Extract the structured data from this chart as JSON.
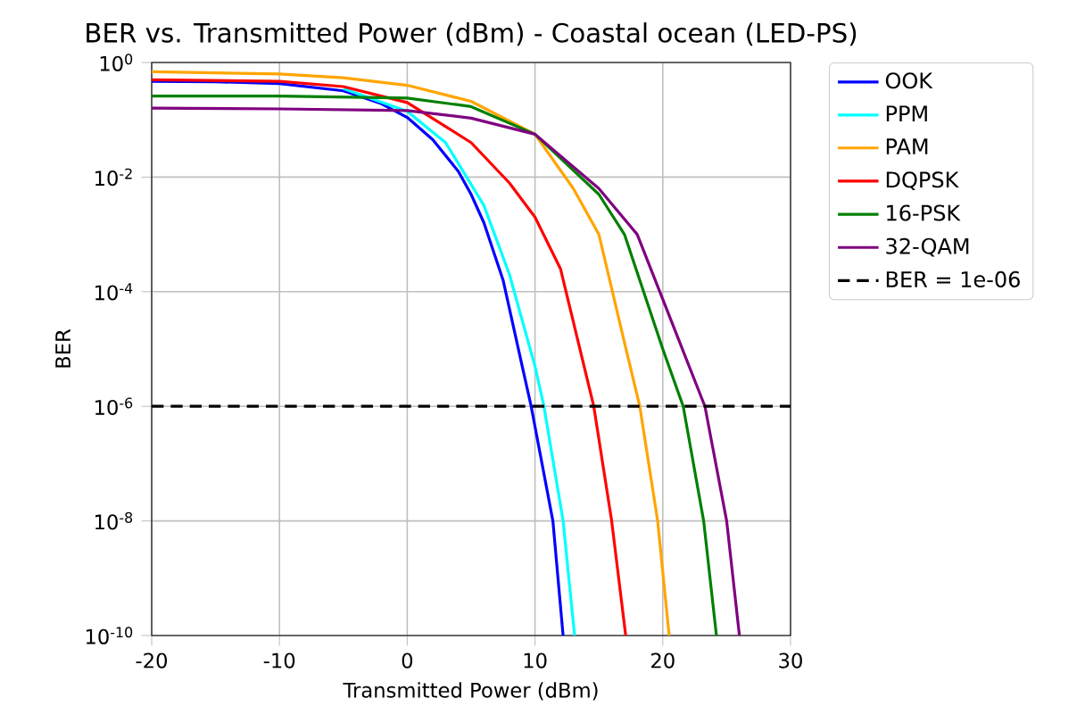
{
  "chart_data": {
    "type": "line",
    "title": "BER vs. Transmitted Power (dBm) - Coastal ocean (LED-PS)",
    "xlabel": "Transmitted Power (dBm)",
    "ylabel": "BER",
    "log": "y",
    "grid": true,
    "legend": "top right",
    "line_style": "solid",
    "marker": "none",
    "xlim": [
      -20,
      30
    ],
    "xticks": [
      -20,
      -10,
      0,
      10,
      20,
      30
    ],
    "ylim": [
      1e-10,
      1
    ],
    "yticks": [
      {
        "value": 1e-10,
        "label": "10$^{-10}$"
      },
      {
        "value": 1e-08,
        "label": "10$^{-8}$"
      },
      {
        "value": 1e-06,
        "label": "10$^{-6}$"
      },
      {
        "value": 0.0001,
        "label": "10$^{-4}$"
      },
      {
        "value": 0.01,
        "label": "10$^{-2}$"
      },
      {
        "value": 1,
        "label": "10$^{0}$"
      }
    ],
    "series": [
      {
        "name": "OOK",
        "color": "#0000ff",
        "x": [
          -20,
          -15,
          -10,
          -5,
          -2,
          0,
          2,
          4,
          5,
          6,
          7.5,
          9,
          9.7,
          11.4,
          12.2
        ],
        "values": [
          0.47,
          0.46,
          0.43,
          0.32,
          0.19,
          0.11,
          0.045,
          0.0126,
          0.005,
          0.0016,
          0.00016,
          5e-06,
          1e-06,
          1e-08,
          1e-10
        ]
      },
      {
        "name": "PPM",
        "color": "#00ffff",
        "x": [
          -5,
          0,
          3,
          6,
          8,
          10,
          10.7,
          12.2,
          13.1
        ],
        "values": [
          0.35,
          0.14,
          0.04,
          0.0032,
          0.0002,
          5e-06,
          1e-06,
          1e-08,
          1e-10
        ]
      },
      {
        "name": "PAM",
        "color": "#ffa500",
        "x": [
          -20,
          -10,
          -5,
          0,
          5,
          10,
          13,
          15,
          17,
          18.2,
          19.6,
          20.5
        ],
        "values": [
          0.69,
          0.63,
          0.54,
          0.4,
          0.21,
          0.056,
          0.0063,
          0.001,
          1.3e-05,
          1e-06,
          1e-08,
          1e-10
        ]
      },
      {
        "name": "DQPSK",
        "color": "#ff0000",
        "x": [
          -20,
          -10,
          -5,
          0,
          5,
          8,
          10,
          12,
          14.6,
          16,
          17.1
        ],
        "values": [
          0.5,
          0.47,
          0.38,
          0.2,
          0.04,
          0.0079,
          0.002,
          0.00025,
          1e-06,
          1e-08,
          1e-10
        ]
      },
      {
        "name": "16-PSK",
        "color": "#008000",
        "x": [
          -20,
          -10,
          0,
          5,
          10,
          15,
          17,
          20,
          21.6,
          23.2,
          24.2
        ],
        "values": [
          0.26,
          0.26,
          0.24,
          0.17,
          0.056,
          0.005,
          0.001,
          1e-05,
          1e-06,
          1e-08,
          1e-10
        ]
      },
      {
        "name": "32-QAM",
        "color": "#800080",
        "x": [
          -20,
          -10,
          0,
          5,
          10,
          15,
          18,
          21,
          23.3,
          25,
          26
        ],
        "values": [
          0.16,
          0.155,
          0.145,
          0.107,
          0.056,
          0.0063,
          0.001,
          2e-05,
          1e-06,
          1e-08,
          1e-10
        ]
      }
    ],
    "ref_lines": [
      {
        "axis": "y",
        "value": 1e-06,
        "label": "BER = 1e-06",
        "color": "#000000",
        "line_style": "dashed"
      }
    ]
  }
}
